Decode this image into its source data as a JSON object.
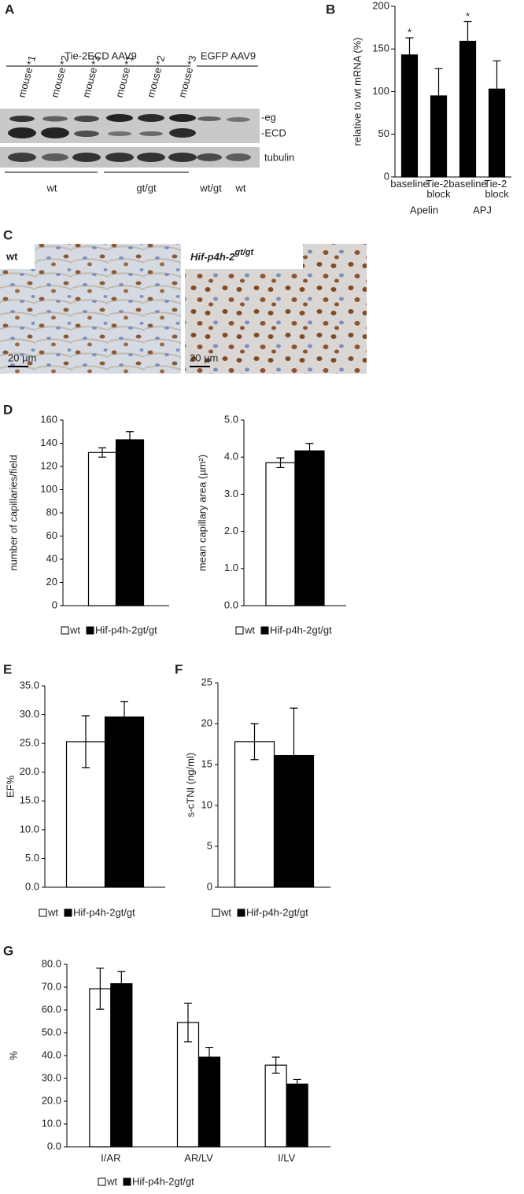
{
  "panel_labels": [
    "A",
    "B",
    "C",
    "D",
    "E",
    "F",
    "G"
  ],
  "blot": {
    "groups": [
      "Tie-2ECD AAV9",
      "EGFP AAV9"
    ],
    "lanes": [
      "mouse *1",
      "mouse *2",
      "mouse *3",
      "mouse *1",
      "mouse *2",
      "mouse *3"
    ],
    "bands": [
      "-eg",
      "-ECD",
      "tubulin"
    ],
    "genotypes": [
      "wt",
      "gt/gt",
      "wt/gt",
      "wt"
    ]
  },
  "micrographs": {
    "left_label": "wt",
    "right_label": "Hif-p4h-2",
    "right_label_sup": "gt/gt",
    "scale_bars": [
      "20 µm",
      "20 µm"
    ]
  },
  "chart_data": [
    {
      "type": "bar",
      "y_label": "relative to wt mRNA (%)",
      "categories": [
        "baseline",
        "Tie-2 block",
        "baseline",
        "Tie-2 block"
      ],
      "groups": [
        "Apelin",
        "APJ"
      ],
      "values": [
        143,
        95,
        159,
        103
      ],
      "errors": [
        20,
        32,
        23,
        33
      ],
      "significance": [
        "*",
        null,
        "*",
        null
      ],
      "color": "#000000",
      "ylim": [
        0,
        200
      ],
      "yticks": [
        0,
        50,
        100,
        150,
        200
      ]
    },
    {
      "type": "bar",
      "y_label": "number of capillaries/field",
      "series": [
        {
          "name": "wt",
          "color": "#ffffff",
          "values": [
            132
          ],
          "errors": [
            4
          ]
        },
        {
          "name": "Hif-p4h-2gt/gt",
          "color": "#000000",
          "values": [
            143
          ],
          "errors": [
            7
          ]
        }
      ],
      "ylim": [
        0,
        160
      ],
      "yticks": [
        0,
        20,
        40,
        60,
        80,
        100,
        120,
        140,
        160
      ]
    },
    {
      "type": "bar",
      "y_label": "mean capillary area (µm²)",
      "series": [
        {
          "name": "wt",
          "color": "#ffffff",
          "values": [
            3.85
          ],
          "errors": [
            0.13
          ]
        },
        {
          "name": "Hif-p4h-2gt/gt",
          "color": "#000000",
          "values": [
            4.17
          ],
          "errors": [
            0.2
          ]
        }
      ],
      "ylim": [
        0,
        5
      ],
      "yticks": [
        {
          "value": 0,
          "label": "0.0"
        },
        {
          "value": 1,
          "label": "1.0"
        },
        {
          "value": 2,
          "label": "2.0"
        },
        {
          "value": 3,
          "label": "3.0"
        },
        {
          "value": 4,
          "label": "4.0"
        },
        {
          "value": 5,
          "label": "5.0"
        }
      ]
    },
    {
      "type": "bar",
      "y_label": "EF%",
      "series": [
        {
          "name": "wt",
          "color": "#ffffff",
          "values": [
            25.3
          ],
          "errors": [
            4.5
          ]
        },
        {
          "name": "Hif-p4h-2gt/gt",
          "color": "#000000",
          "values": [
            29.6
          ],
          "errors": [
            2.7
          ]
        }
      ],
      "ylim": [
        0,
        35
      ],
      "yticks": [
        {
          "value": 0,
          "label": "0.0"
        },
        {
          "value": 5,
          "label": "5.0"
        },
        {
          "value": 10,
          "label": "10.0"
        },
        {
          "value": 15,
          "label": "15.0"
        },
        {
          "value": 20,
          "label": "20.0"
        },
        {
          "value": 25,
          "label": "25.0"
        },
        {
          "value": 30,
          "label": "30.0"
        },
        {
          "value": 35,
          "label": "35.0"
        }
      ]
    },
    {
      "type": "bar",
      "y_label": "s-cTNI (ng/ml)",
      "series": [
        {
          "name": "wt",
          "color": "#ffffff",
          "values": [
            17.8
          ],
          "errors": [
            2.2
          ]
        },
        {
          "name": "Hif-p4h-2gt/gt",
          "color": "#000000",
          "values": [
            16.1
          ],
          "errors": [
            5.8
          ]
        }
      ],
      "ylim": [
        0,
        25
      ],
      "yticks": [
        0,
        5,
        10,
        15,
        20,
        25
      ]
    },
    {
      "type": "bar",
      "y_label": "%",
      "categories": [
        "I/AR",
        "AR/LV",
        "I/LV"
      ],
      "series": [
        {
          "name": "wt",
          "color": "#ffffff",
          "values": [
            69.3,
            54.5,
            35.8
          ],
          "errors": [
            9,
            8.5,
            3.5
          ]
        },
        {
          "name": "Hif-p4h-2gt/gt",
          "color": "#000000",
          "values": [
            71.5,
            39.3,
            27.5
          ],
          "errors": [
            5.3,
            4.3,
            2
          ]
        }
      ],
      "ylim": [
        0,
        80
      ],
      "yticks": [
        {
          "value": 0,
          "label": "0.0"
        },
        {
          "value": 10,
          "label": "10.0"
        },
        {
          "value": 20,
          "label": "20.0"
        },
        {
          "value": 30,
          "label": "30.0"
        },
        {
          "value": 40,
          "label": "40.0"
        },
        {
          "value": 50,
          "label": "50.0"
        },
        {
          "value": 60,
          "label": "60.0"
        },
        {
          "value": 70,
          "label": "70.0"
        },
        {
          "value": 80,
          "label": "80.0"
        }
      ]
    }
  ]
}
